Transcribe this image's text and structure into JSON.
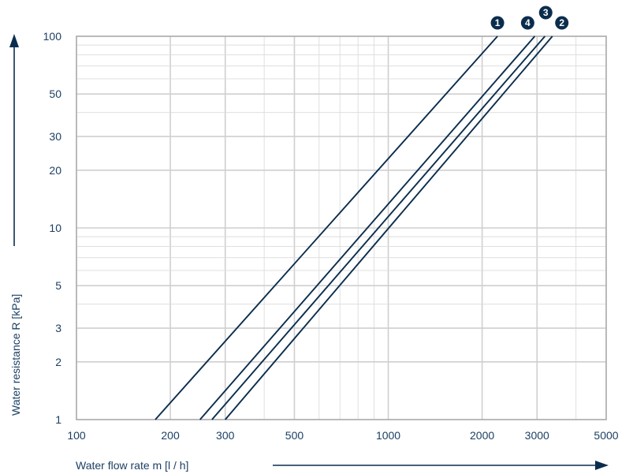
{
  "chart_data": {
    "type": "line",
    "x_scale": "log",
    "y_scale": "log",
    "xlabel": "Water flow rate m [l / h]",
    "ylabel": "Water resistance R [kPa]",
    "xlim": [
      100,
      5000
    ],
    "ylim": [
      1,
      100
    ],
    "x_ticks": [
      100,
      200,
      300,
      500,
      1000,
      2000,
      3000,
      5000
    ],
    "y_ticks": [
      1,
      2,
      3,
      5,
      10,
      20,
      30,
      50,
      100
    ],
    "x_tick_labels": [
      "100",
      "200",
      "300",
      "500",
      "1000",
      "2000",
      "3000",
      "5000"
    ],
    "y_tick_labels": [
      "1",
      "2",
      "3",
      "5",
      "10",
      "20",
      "30",
      "50",
      "100"
    ],
    "grid": true,
    "colors": {
      "series": "#0b2d4d",
      "text": "#1c3f63",
      "grid": "#cfcfcf"
    },
    "series": [
      {
        "name": "1",
        "x": [
          179,
          2240
        ],
        "y": [
          1,
          100
        ]
      },
      {
        "name": "2",
        "x": [
          300,
          3360
        ],
        "y": [
          1,
          100
        ]
      },
      {
        "name": "3",
        "x": [
          272,
          3180
        ],
        "y": [
          1,
          100
        ]
      },
      {
        "name": "4",
        "x": [
          249,
          2950
        ],
        "y": [
          1,
          100
        ]
      }
    ]
  }
}
